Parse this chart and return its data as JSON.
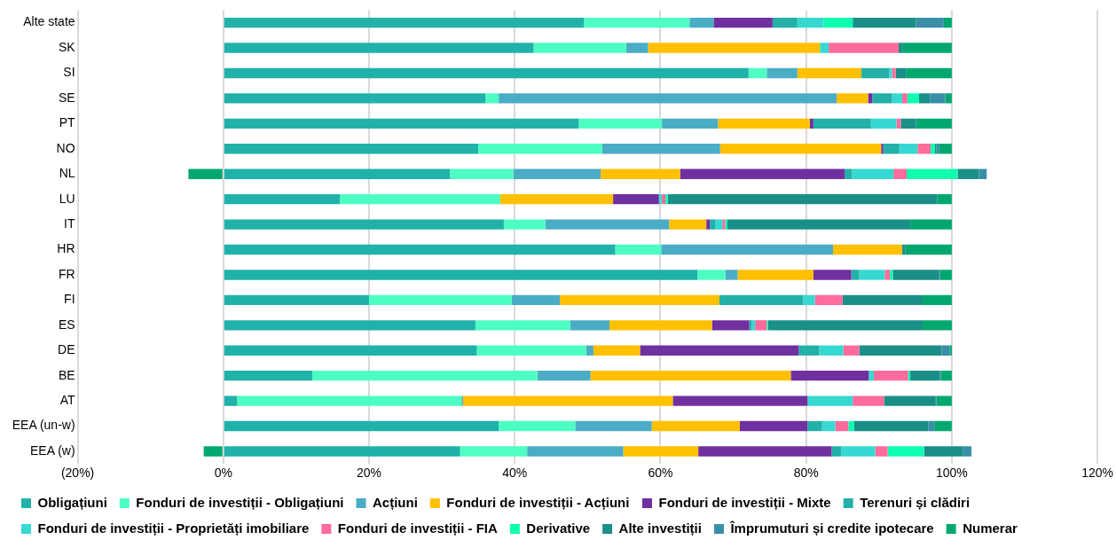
{
  "chart_data": {
    "type": "bar",
    "orientation": "horizontal",
    "stacked": true,
    "categories": [
      "Alte state",
      "SK",
      "SI",
      "SE",
      "PT",
      "NO",
      "NL",
      "LU",
      "IT",
      "HR",
      "FR",
      "FI",
      "ES",
      "DE",
      "BE",
      "AT",
      "EEA (un-w)",
      "EEA (w)"
    ],
    "xlim": [
      -20,
      120
    ],
    "xticks": [
      {
        "value": -20,
        "label": "(20%)"
      },
      {
        "value": 0,
        "label": "0%"
      },
      {
        "value": 20,
        "label": "20%"
      },
      {
        "value": 40,
        "label": "40%"
      },
      {
        "value": 60,
        "label": "60%"
      },
      {
        "value": 80,
        "label": "80%"
      },
      {
        "value": 100,
        "label": "100%"
      },
      {
        "value": 120,
        "label": "120%"
      }
    ],
    "grid": "x",
    "legend": "bottom",
    "series": [
      {
        "name": "Obligațiuni",
        "color": "#20b2aa",
        "values": [
          49.5,
          42.6,
          72.1,
          36.0,
          48.8,
          35.0,
          31.1,
          16.0,
          38.5,
          53.8,
          65.1,
          20.0,
          34.6,
          34.8,
          12.2,
          1.9,
          37.8,
          32.5
        ]
      },
      {
        "name": "Fonduri de investiții - Obligațiuni",
        "color": "#4dffc3",
        "values": [
          14.5,
          12.7,
          2.5,
          1.8,
          11.4,
          17.0,
          8.7,
          22.0,
          5.7,
          6.3,
          3.8,
          19.6,
          13.0,
          15.0,
          30.9,
          30.8,
          10.5,
          9.2
        ]
      },
      {
        "name": "Acțiuni",
        "color": "#4bacc6",
        "values": [
          3.3,
          3.0,
          4.2,
          46.4,
          7.7,
          16.2,
          12.0,
          0,
          17.0,
          23.6,
          1.7,
          6.6,
          5.4,
          1.0,
          7.3,
          0.2,
          10.5,
          13.2
        ]
      },
      {
        "name": "Fonduri de investiții - Acțiuni",
        "color": "#ffc000",
        "values": [
          0,
          23.6,
          8.8,
          4.3,
          12.6,
          22.1,
          10.9,
          15.5,
          5.1,
          9.5,
          10.4,
          21.9,
          14.1,
          6.4,
          27.5,
          28.8,
          12.1,
          10.3
        ]
      },
      {
        "name": "Fonduri de investiții - Mixte",
        "color": "#7030a0",
        "values": [
          8.1,
          0,
          0,
          0.6,
          0.5,
          0.3,
          22.6,
          6.3,
          0.5,
          0,
          5.2,
          0,
          5.1,
          21.8,
          10.7,
          18.5,
          9.3,
          18.3
        ]
      },
      {
        "name": "Terenuri și clădiri",
        "color": "#22b0a8",
        "values": [
          3.4,
          0,
          3.8,
          2.7,
          7.9,
          2.2,
          1.0,
          0,
          0.7,
          0,
          1.1,
          11.5,
          0.3,
          2.8,
          0,
          0,
          2.0,
          1.3
        ]
      },
      {
        "name": "Fonduri de investiții - Proprietăți imobiliare",
        "color": "#36d9d2",
        "values": [
          3.6,
          1.2,
          0.4,
          1.4,
          3.5,
          2.5,
          5.7,
          0.4,
          1.0,
          0,
          3.5,
          1.6,
          0.5,
          3.3,
          0.7,
          6.2,
          1.8,
          4.7
        ]
      },
      {
        "name": "Fonduri de investiții - FIA",
        "color": "#ff6b9a",
        "values": [
          0,
          9.6,
          0.5,
          0.7,
          0.6,
          1.8,
          1.8,
          0.5,
          0.4,
          0,
          0.7,
          3.8,
          1.6,
          2.2,
          4.7,
          4.3,
          1.8,
          1.7
        ]
      },
      {
        "name": "Derivative",
        "color": "#0dffb0",
        "values": [
          4.0,
          0,
          0,
          1.6,
          0,
          0.6,
          7.0,
          0.3,
          0.3,
          0,
          0.4,
          0,
          0.2,
          0,
          0.3,
          0,
          0.8,
          5.0
        ]
      },
      {
        "name": "Alte investiții",
        "color": "#1a8f88",
        "values": [
          8.7,
          0.6,
          1.4,
          1.5,
          2.1,
          0.2,
          2.9,
          37.0,
          25.1,
          0.4,
          6.3,
          11.0,
          21.2,
          11.3,
          4.0,
          7.1,
          10.2,
          5.3
        ]
      },
      {
        "name": "Împrumuturi și credite ipotecare",
        "color": "#3a8fa8",
        "values": [
          3.8,
          0,
          0,
          2.1,
          0,
          0.4,
          1.1,
          0,
          0,
          0,
          0.2,
          0,
          0,
          1.1,
          0.2,
          0.1,
          0.8,
          1.2
        ]
      },
      {
        "name": "Numerar",
        "color": "#00a870",
        "values": [
          1.1,
          6.7,
          6.3,
          0.9,
          4.9,
          1.7,
          -4.8,
          2.0,
          5.7,
          6.4,
          1.6,
          4.0,
          4.0,
          0.3,
          1.5,
          2.1,
          2.4,
          -2.7
        ]
      }
    ]
  }
}
